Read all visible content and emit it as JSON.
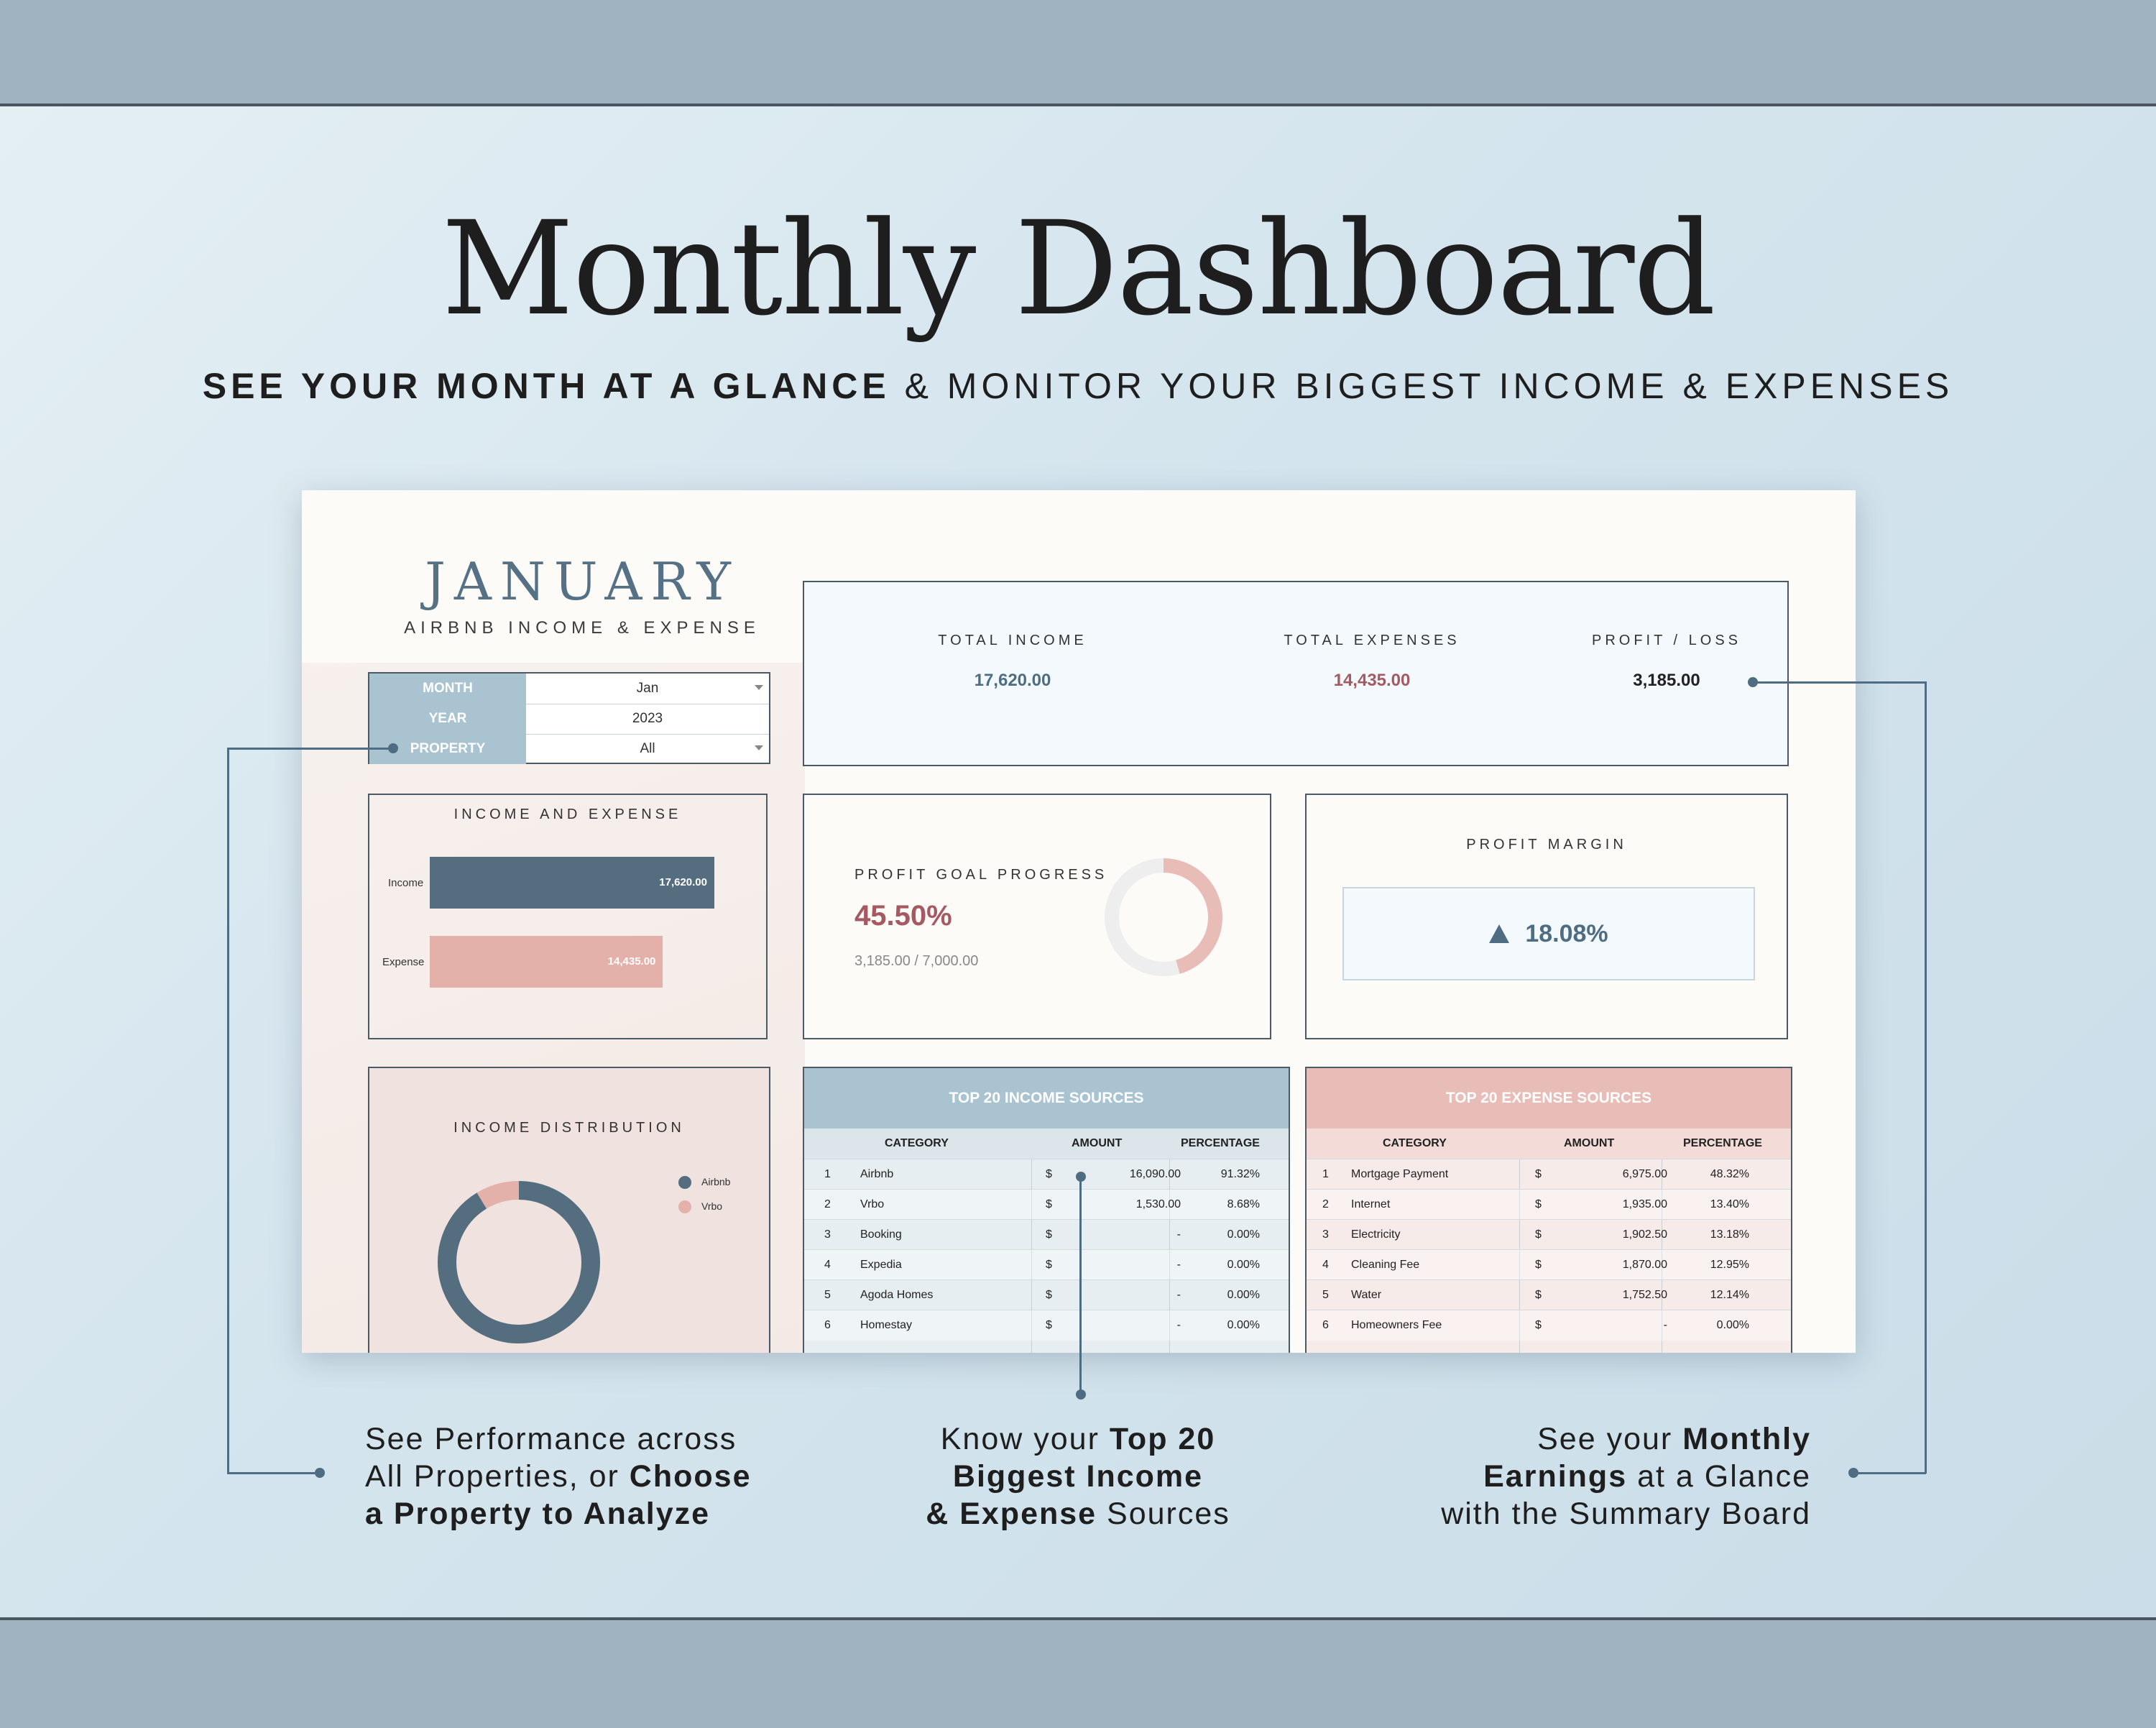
{
  "headline": "Monthly Dashboard",
  "subline": {
    "bold": "SEE YOUR MONTH AT A GLANCE",
    "rest": " & MONITOR YOUR BIGGEST INCOME & EXPENSES"
  },
  "sheet": {
    "month": "JANUARY",
    "subtitle": "AIRBNB INCOME & EXPENSE",
    "selectors": [
      {
        "label": "MONTH",
        "value": "Jan",
        "dropdown": true
      },
      {
        "label": "YEAR",
        "value": "2023",
        "dropdown": false
      },
      {
        "label": "PROPERTY",
        "value": "All",
        "dropdown": true
      }
    ],
    "kpi": {
      "income_label": "TOTAL INCOME",
      "income_value": "17,620.00",
      "expense_label": "TOTAL EXPENSES",
      "expense_value": "14,435.00",
      "profit_label": "PROFIT / LOSS",
      "profit_value": "3,185.00"
    },
    "income_expense": {
      "title": "INCOME AND EXPENSE",
      "income_label": "Income",
      "income_value": "17,620.00",
      "income_num": 17620,
      "expense_label": "Expense",
      "expense_value": "14,435.00",
      "expense_num": 14435
    },
    "profit_goal": {
      "title": "PROFIT GOAL PROGRESS",
      "percent": "45.50%",
      "fraction": "3,185.00 / 7,000.00",
      "progress": 0.455
    },
    "profit_margin": {
      "title": "PROFIT MARGIN",
      "value": "18.08%"
    },
    "distribution": {
      "title": "INCOME DISTRIBUTION",
      "legend": [
        "Airbnb",
        "Vrbo"
      ],
      "shares": [
        0.9132,
        0.0868
      ]
    },
    "income_table": {
      "title": "TOP 20 INCOME SOURCES",
      "headers": [
        "CATEGORY",
        "AMOUNT",
        "PERCENTAGE"
      ],
      "rows": [
        [
          "1",
          "Airbnb",
          "$",
          "16,090.00",
          "91.32%"
        ],
        [
          "2",
          "Vrbo",
          "$",
          "1,530.00",
          "8.68%"
        ],
        [
          "3",
          "Booking",
          "$",
          "-",
          "0.00%"
        ],
        [
          "4",
          "Expedia",
          "$",
          "-",
          "0.00%"
        ],
        [
          "5",
          "Agoda Homes",
          "$",
          "-",
          "0.00%"
        ],
        [
          "6",
          "Homestay",
          "$",
          "-",
          "0.00%"
        ]
      ]
    },
    "expense_table": {
      "title": "TOP 20 EXPENSE SOURCES",
      "headers": [
        "CATEGORY",
        "AMOUNT",
        "PERCENTAGE"
      ],
      "rows": [
        [
          "1",
          "Mortgage Payment",
          "$",
          "6,975.00",
          "48.32%"
        ],
        [
          "2",
          "Internet",
          "$",
          "1,935.00",
          "13.40%"
        ],
        [
          "3",
          "Electricity",
          "$",
          "1,902.50",
          "13.18%"
        ],
        [
          "4",
          "Cleaning Fee",
          "$",
          "1,870.00",
          "12.95%"
        ],
        [
          "5",
          "Water",
          "$",
          "1,752.50",
          "12.14%"
        ],
        [
          "6",
          "Homeowners Fee",
          "$",
          "-",
          "0.00%"
        ]
      ]
    }
  },
  "callouts": {
    "left": {
      "l1": "See Performance across",
      "l2a": "All Properties, or ",
      "l2b": "Choose",
      "l3": "a Property to Analyze"
    },
    "middle": {
      "l1a": "Know your ",
      "l1b": "Top 20",
      "l2": "Biggest Income",
      "l3a": "& Expense",
      "l3b": " Sources"
    },
    "right": {
      "l1a": "See your ",
      "l1b": "Monthly",
      "l2a": "Earnings",
      "l2b": " at a Glance",
      "l3": "with the Summary Board"
    }
  },
  "colors": {
    "navy": "#4f6d82",
    "rose": "#e4b1aa",
    "rose_text": "#a55a62",
    "slate_header": "#a9c3d1",
    "pink_header": "#e9bdb7"
  }
}
